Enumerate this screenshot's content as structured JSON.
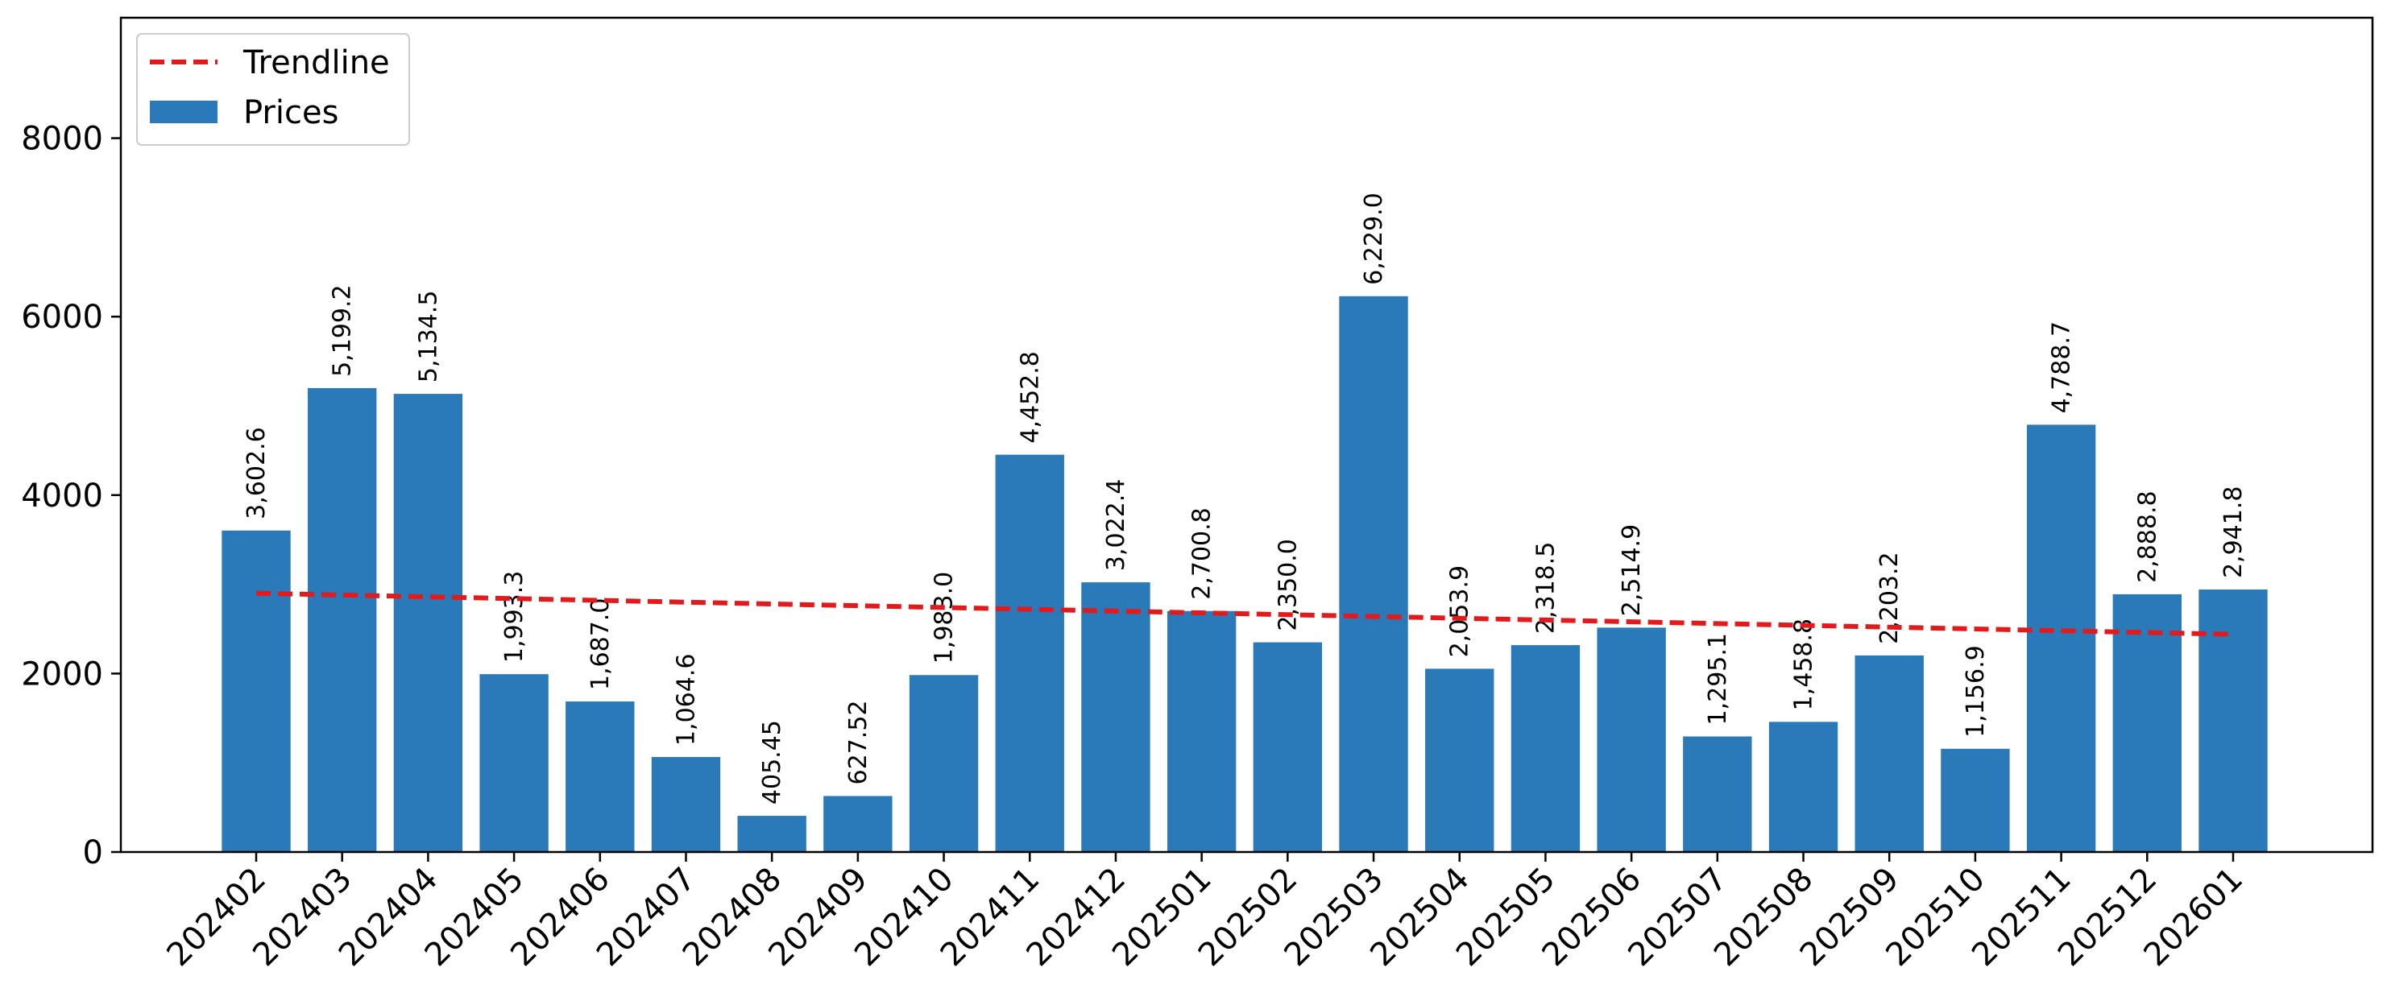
{
  "chart_data": {
    "type": "bar",
    "categories": [
      "202402",
      "202403",
      "202404",
      "202405",
      "202406",
      "202407",
      "202408",
      "202409",
      "202410",
      "202411",
      "202412",
      "202501",
      "202502",
      "202503",
      "202504",
      "202505",
      "202506",
      "202507",
      "202508",
      "202509",
      "202510",
      "202511",
      "202512",
      "202601"
    ],
    "series": [
      {
        "name": "Prices",
        "type": "bar",
        "color": "#2a7ab9",
        "values": [
          3602.6,
          5199.2,
          5134.5,
          1993.3,
          1687.0,
          1064.6,
          405.45,
          627.52,
          1983.0,
          4452.8,
          3022.4,
          2700.8,
          2350.0,
          6229.0,
          2053.9,
          2318.5,
          2514.9,
          1295.1,
          1458.8,
          2203.2,
          1156.9,
          4788.7,
          2888.8,
          2941.8
        ],
        "labels": [
          "3,602.6",
          "5,199.2",
          "5,134.5",
          "1,993.3",
          "1,687.0",
          "1,064.6",
          "405.45",
          "627.52",
          "1,983.0",
          "4,452.8",
          "3,022.4",
          "2,700.8",
          "2,350.0",
          "6,229.0",
          "2,053.9",
          "2,318.5",
          "2,514.9",
          "1,295.1",
          "1,458.8",
          "2,203.2",
          "1,156.9",
          "4,788.7",
          "2,888.8",
          "2,941.8"
        ]
      },
      {
        "name": "Trendline",
        "type": "line",
        "style": "dashed",
        "color": "#e31a1c",
        "values": [
          2900,
          2880,
          2860,
          2840,
          2820,
          2800,
          2780,
          2760,
          2740,
          2720,
          2700,
          2680,
          2660,
          2640,
          2620,
          2600,
          2580,
          2560,
          2540,
          2520,
          2500,
          2480,
          2460,
          2440
        ]
      }
    ],
    "yticks": [
      "0",
      "2000",
      "4000",
      "6000",
      "8000"
    ],
    "ylim": [
      0,
      9350
    ],
    "xlabel": "",
    "ylabel": "",
    "title": "",
    "grid": false,
    "legend_position": "top-left"
  }
}
